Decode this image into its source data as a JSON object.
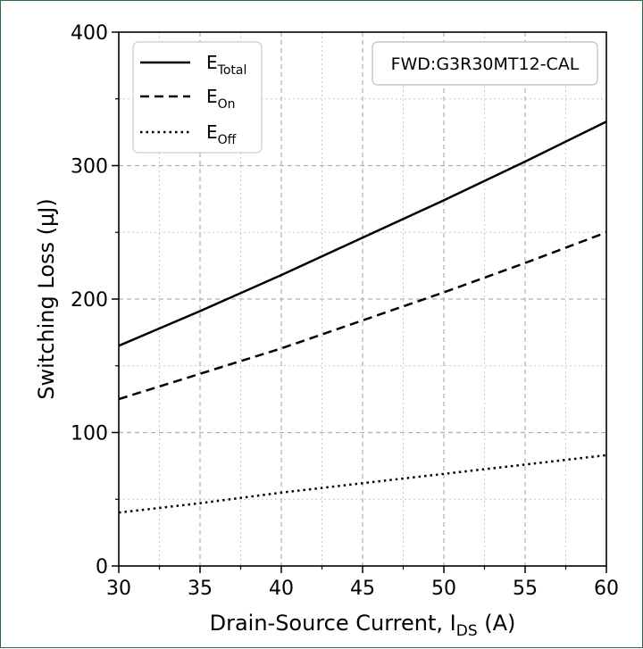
{
  "chart_data": {
    "type": "line",
    "xlabel": {
      "main": "Drain-Source Current, I",
      "sub": "DS",
      "tail": " (A)"
    },
    "ylabel": "Switching Loss (µJ)",
    "xlim": [
      30,
      60
    ],
    "ylim": [
      0,
      400
    ],
    "x_ticks": [
      30,
      35,
      40,
      45,
      50,
      55,
      60
    ],
    "y_ticks": [
      0,
      100,
      200,
      300,
      400
    ],
    "x_tick_labels": [
      "30",
      "35",
      "40",
      "45",
      "50",
      "55",
      "60"
    ],
    "y_tick_labels": [
      "0",
      "100",
      "200",
      "300",
      "400"
    ],
    "grid": true,
    "legend_placement": "top-left",
    "annotation": "FWD:G3R30MT12-CAL",
    "series": [
      {
        "name": "ETotal",
        "label_main": "E",
        "label_sub": "Total",
        "dash": "solid",
        "x": [
          30,
          35,
          40,
          45,
          50,
          55,
          60
        ],
        "values": [
          165,
          191,
          218,
          246,
          274,
          303,
          333
        ]
      },
      {
        "name": "EOn",
        "label_main": "E",
        "label_sub": "On",
        "dash": "dashed",
        "x": [
          30,
          35,
          40,
          45,
          50,
          55,
          60
        ],
        "values": [
          125,
          144,
          163,
          184,
          205,
          227,
          250
        ]
      },
      {
        "name": "EOff",
        "label_main": "E",
        "label_sub": "Off",
        "dash": "dotted",
        "x": [
          30,
          35,
          40,
          45,
          50,
          55,
          60
        ],
        "values": [
          40,
          47,
          55,
          62,
          69,
          76,
          83
        ]
      }
    ]
  }
}
